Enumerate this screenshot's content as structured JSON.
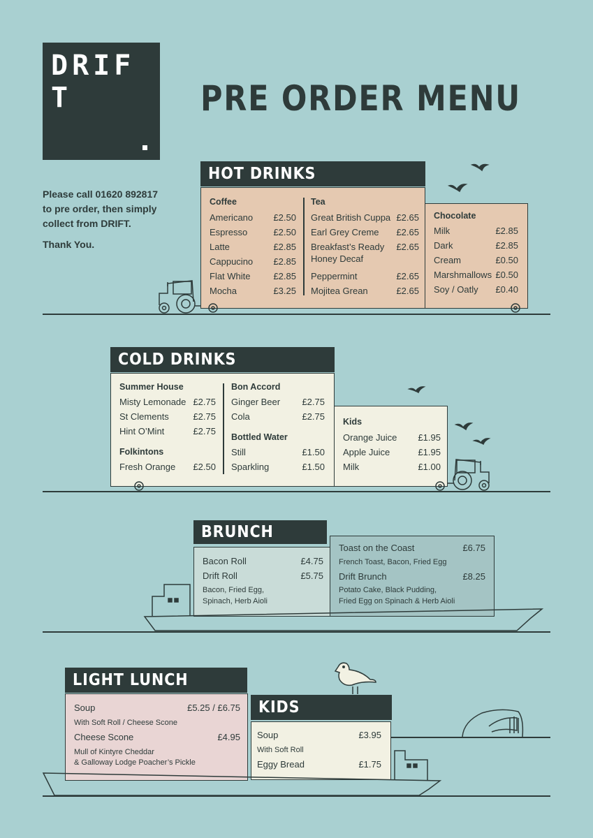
{
  "logo": {
    "text": "DRIF T",
    "dot": "."
  },
  "title": "PRE ORDER MENU",
  "contact": {
    "line1": "Please call 01620 892817",
    "line2": "to pre order, then simply",
    "line3": "collect from DRIFT.",
    "thanks": "Thank You."
  },
  "hot_drinks": {
    "title": "HOT DRINKS",
    "coffee": {
      "heading": "Coffee",
      "items": [
        {
          "name": "Americano",
          "price": "£2.50"
        },
        {
          "name": "Espresso",
          "price": "£2.50"
        },
        {
          "name": "Latte",
          "price": "£2.85"
        },
        {
          "name": "Cappucino",
          "price": "£2.85"
        },
        {
          "name": "Flat White",
          "price": "£2.85"
        },
        {
          "name": "Mocha",
          "price": "£3.25"
        }
      ]
    },
    "tea": {
      "heading": "Tea",
      "items": [
        {
          "name": "Great British Cuppa",
          "price": "£2.65"
        },
        {
          "name": "Earl Grey Creme",
          "price": "£2.65"
        },
        {
          "name": "Breakfast’s Ready",
          "name2": "Honey Decaf",
          "price": "£2.65"
        },
        {
          "name": "Peppermint",
          "price": "£2.65"
        },
        {
          "name": "Mojitea Grean",
          "price": "£2.65"
        }
      ]
    },
    "chocolate": {
      "heading": "Chocolate",
      "items": [
        {
          "name": "Milk",
          "price": "£2.85"
        },
        {
          "name": "Dark",
          "price": "£2.85"
        },
        {
          "name": "Cream",
          "price": "£0.50"
        },
        {
          "name": "Marshmallows",
          "price": "£0.50"
        },
        {
          "name": "Soy / Oatly",
          "price": "£0.40"
        }
      ]
    }
  },
  "cold_drinks": {
    "title": "COLD DRINKS",
    "summer_house": {
      "heading": "Summer House",
      "items": [
        {
          "name": "Misty Lemonade",
          "price": "£2.75"
        },
        {
          "name": "St Clements",
          "price": "£2.75"
        },
        {
          "name": "Hint O’Mint",
          "price": "£2.75"
        }
      ]
    },
    "folkintons": {
      "heading": "Folkintons",
      "items": [
        {
          "name": "Fresh Orange",
          "price": "£2.50"
        }
      ]
    },
    "bon_accord": {
      "heading": "Bon Accord",
      "items": [
        {
          "name": "Ginger Beer",
          "price": "£2.75"
        },
        {
          "name": "Cola",
          "price": "£2.75"
        }
      ]
    },
    "bottled_water": {
      "heading": "Bottled Water",
      "items": [
        {
          "name": "Still",
          "price": "£1.50"
        },
        {
          "name": "Sparkling",
          "price": "£1.50"
        }
      ]
    },
    "kids": {
      "heading": "Kids",
      "items": [
        {
          "name": "Orange Juice",
          "price": "£1.95"
        },
        {
          "name": "Apple Juice",
          "price": "£1.95"
        },
        {
          "name": "Milk",
          "price": "£1.00"
        }
      ]
    }
  },
  "brunch": {
    "title": "BRUNCH",
    "left": [
      {
        "name": "Bacon Roll",
        "price": "£4.75"
      },
      {
        "name": "Drift Roll",
        "price": "£5.75",
        "desc1": "Bacon, Fried Egg,",
        "desc2": "Spinach, Herb Aioli"
      }
    ],
    "right": [
      {
        "name": "Toast on the Coast",
        "price": "£6.75",
        "desc1": "French Toast, Bacon, Fried Egg"
      },
      {
        "name": "Drift Brunch",
        "price": "£8.25",
        "desc1": "Potato Cake, Black Pudding,",
        "desc2": "Fried Egg on Spinach & Herb Aioli"
      }
    ]
  },
  "light_lunch": {
    "title": "LIGHT LUNCH",
    "items": [
      {
        "name": "Soup",
        "price": "£5.25 / £6.75",
        "desc1": "With Soft Roll / Cheese Scone"
      },
      {
        "name": "Cheese Scone",
        "price": "£4.95",
        "desc1": "Mull of Kintyre Cheddar",
        "desc2": "& Galloway Lodge Poacher’s Pickle"
      }
    ]
  },
  "kids_food": {
    "title": "KIDS",
    "items": [
      {
        "name": "Soup",
        "price": "£3.95",
        "desc1": "With Soft Roll"
      },
      {
        "name": "Eggy Bread",
        "price": "£1.75"
      }
    ]
  },
  "colors": {
    "background": "#a9d0d1",
    "ink": "#2e3b3a",
    "peach": "#e5c9b1",
    "cream": "#f2f1e3",
    "mint": "#c9dcd8",
    "slate": "#a4c4c4",
    "pink": "#e9d5d4"
  },
  "icons": [
    "tractor-icon",
    "bird-icon",
    "boat-icon",
    "seagull-icon",
    "rock-icon"
  ]
}
